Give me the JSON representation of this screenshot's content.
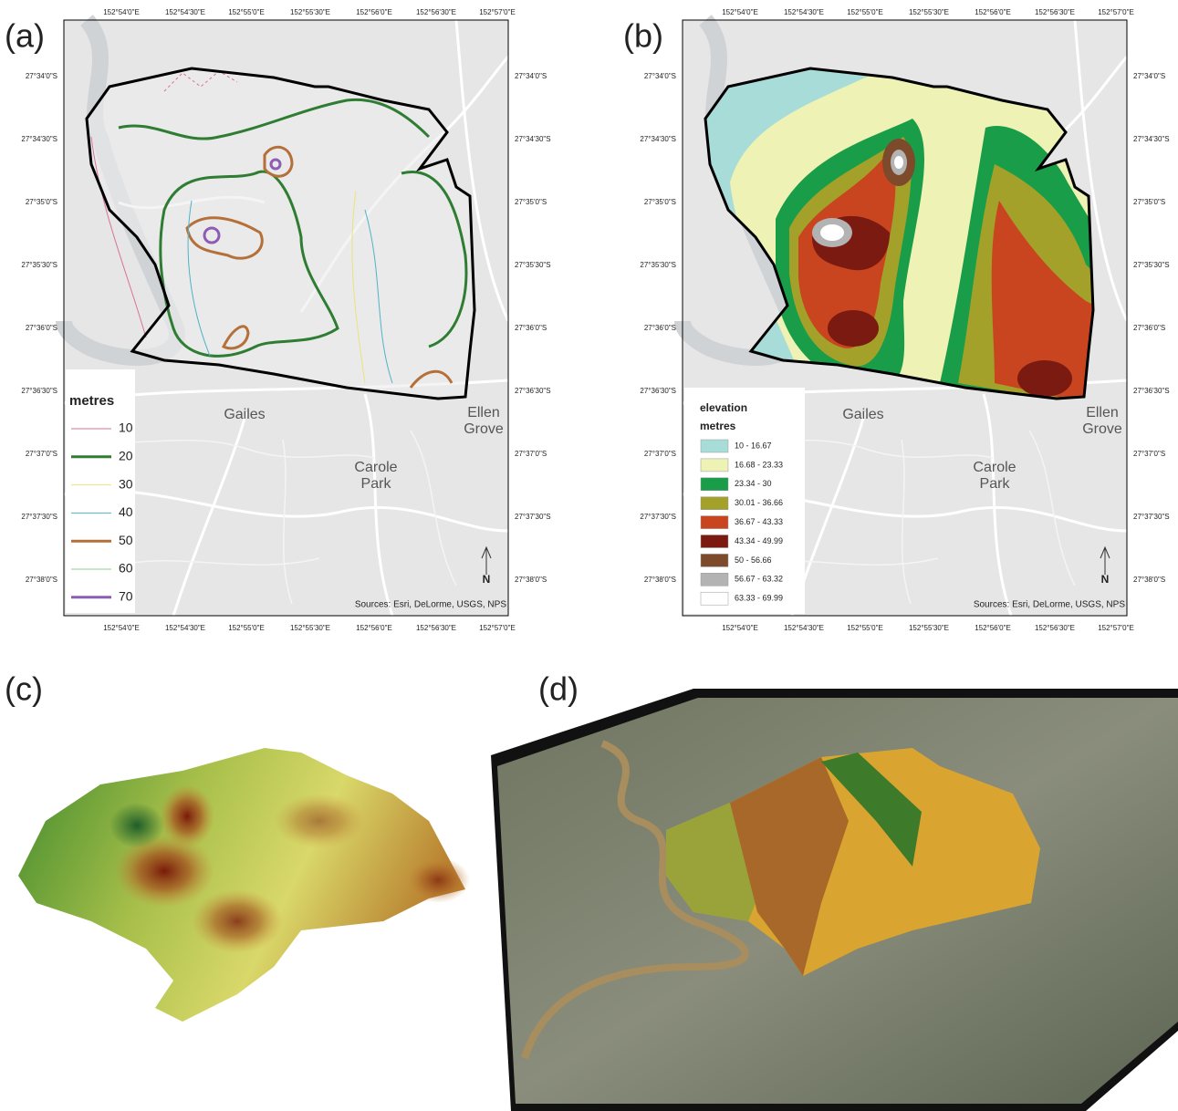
{
  "panels": [
    "(a)",
    "(b)",
    "(c)",
    "(d)"
  ],
  "lon_ticks": [
    "152°54'0\"E",
    "152°54'30\"E",
    "152°55'0\"E",
    "152°55'30\"E",
    "152°56'0\"E",
    "152°56'30\"E",
    "152°57'0\"E"
  ],
  "lat_ticks": [
    "27°34'0\"S",
    "27°34'30\"S",
    "27°35'0\"S",
    "27°35'30\"S",
    "27°36'0\"S",
    "27°36'30\"S",
    "27°37'0\"S",
    "27°37'30\"S",
    "27°38'0\"S"
  ],
  "places": {
    "gailes": "Gailes",
    "carole": "Carole",
    "park": "Park",
    "ellen": "Ellen",
    "grove": "Grove"
  },
  "north": "N",
  "sources": "Sources: Esri, DeLorme, USGS, NPS",
  "legend_a": {
    "title": "metres",
    "items": [
      {
        "label": "10",
        "color": "#d9709a",
        "width": 1
      },
      {
        "label": "20",
        "color": "#2e7d32",
        "width": 3
      },
      {
        "label": "30",
        "color": "#ece27a",
        "width": 1
      },
      {
        "label": "40",
        "color": "#4fb3c6",
        "width": 1
      },
      {
        "label": "50",
        "color": "#b5703a",
        "width": 3
      },
      {
        "label": "60",
        "color": "#8fcf8f",
        "width": 1
      },
      {
        "label": "70",
        "color": "#8e5bb5",
        "width": 3
      }
    ]
  },
  "legend_b": {
    "title": "elevation",
    "subtitle": "metres",
    "items": [
      {
        "label": "10 - 16.67",
        "color": "#a8dcd9"
      },
      {
        "label": "16.68 - 23.33",
        "color": "#eef2b4"
      },
      {
        "label": "23.34 - 30",
        "color": "#1a9d48"
      },
      {
        "label": "30.01 - 36.66",
        "color": "#a3a12a"
      },
      {
        "label": "36.67 - 43.33",
        "color": "#c8451f"
      },
      {
        "label": "43.34 - 49.99",
        "color": "#7a1a10"
      },
      {
        "label": "50 - 56.66",
        "color": "#7d4a2b"
      },
      {
        "label": "56.67 - 63.32",
        "color": "#b3b3b3"
      },
      {
        "label": "63.33 - 69.99",
        "color": "#ffffff"
      }
    ]
  }
}
